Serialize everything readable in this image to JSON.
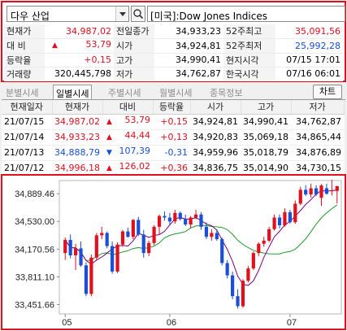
{
  "search": {
    "market_select": "다우 산업",
    "index_name": "[미국]:Dow Jones Indices"
  },
  "quote": {
    "rows": [
      {
        "l1": "현재가",
        "v1": "34,987,02",
        "l2": "전일종가",
        "v2": "34,933,23",
        "l3": "52주최고",
        "v3": "35,091,56"
      },
      {
        "l1": "대  비",
        "v1": "53,79",
        "l2": "시가",
        "v2": "34,924,81",
        "l3": "52주최저",
        "v3": "25,992,28"
      },
      {
        "l1": "등락율",
        "v1": "+0,15",
        "l2": "고가",
        "v2": "34,990,41",
        "l3": "현지시각",
        "v3": "07/15 17:01"
      },
      {
        "l1": "거래량",
        "v1": "320,445,798",
        "l2": "저가",
        "v2": "34,762,87",
        "l3": "한국시각",
        "v3": "07/16 06:01"
      }
    ],
    "change_arrow": "▲",
    "colors": {
      "up": "#e0101e",
      "down": "#1a4fd6"
    }
  },
  "tabs": [
    "분별시세",
    "일별시세",
    "주별시세",
    "월별시세",
    "종목정보"
  ],
  "selected_tab": "일별시세",
  "chart_button": "차트",
  "daily": {
    "headers": [
      "현재일자",
      "현재가",
      "대비",
      "등락율",
      "시가",
      "고가",
      "저가"
    ],
    "rows": [
      {
        "date": "21/07/15",
        "close": "34,987,02",
        "arrow": "▲",
        "change": "53,79",
        "rate": "+0,15",
        "open": "34,924,81",
        "high": "34,990,41",
        "low": "34,762,87",
        "dir": "up"
      },
      {
        "date": "21/07/14",
        "close": "34,933,23",
        "arrow": "▲",
        "change": "44,44",
        "rate": "+0,13",
        "open": "34,920,83",
        "high": "35,069,18",
        "low": "34,865,44",
        "dir": "up"
      },
      {
        "date": "21/07/13",
        "close": "34,888,79",
        "arrow": "▼",
        "change": "107,39",
        "rate": "-0,31",
        "open": "34,959,96",
        "high": "35,018,79",
        "low": "34,876,89",
        "dir": "down"
      },
      {
        "date": "21/07/12",
        "close": "34,996,18",
        "arrow": "▲",
        "change": "126,02",
        "rate": "+0,36",
        "open": "34,836,75",
        "high": "35,014,90",
        "low": "34,730,15",
        "dir": "up"
      }
    ]
  },
  "chart_data": {
    "type": "candlestick",
    "y_ticks": [
      "34,889.46",
      "34,530.00",
      "34,170.56",
      "33,811.10",
      "33,451.66"
    ],
    "y_tick_values": [
      34889.46,
      34530.0,
      34170.56,
      33811.1,
      33451.66
    ],
    "ylim": [
      33330,
      35060
    ],
    "x_ticks": [
      "05",
      "06",
      "07"
    ],
    "x_tick_index": [
      0,
      20,
      43
    ],
    "series": [
      {
        "name": "",
        "color": "#800080",
        "kind": "ma_short"
      },
      {
        "name": "",
        "color": "#1e9a2a",
        "kind": "ma_long"
      }
    ],
    "candles": [
      [
        34120,
        34320,
        34030,
        34290
      ],
      [
        34290,
        34360,
        34050,
        34090
      ],
      [
        34090,
        34240,
        33900,
        34180
      ],
      [
        34180,
        34270,
        33940,
        33960
      ],
      [
        33960,
        34000,
        33560,
        33590
      ],
      [
        33590,
        34100,
        33560,
        34060
      ],
      [
        34060,
        34380,
        34020,
        34350
      ],
      [
        34350,
        34460,
        34300,
        34380
      ],
      [
        34380,
        34400,
        34180,
        34210
      ],
      [
        34210,
        34270,
        33850,
        33880
      ],
      [
        33880,
        34260,
        33860,
        34230
      ],
      [
        34230,
        34420,
        34200,
        34400
      ],
      [
        34400,
        34450,
        34320,
        34330
      ],
      [
        34330,
        34560,
        34300,
        34550
      ],
      [
        34550,
        34590,
        34340,
        34360
      ],
      [
        34360,
        34420,
        34060,
        34120
      ],
      [
        34120,
        34280,
        34080,
        34250
      ],
      [
        34250,
        34480,
        34220,
        34460
      ],
      [
        34460,
        34620,
        34360,
        34600
      ],
      [
        34600,
        34660,
        34540,
        34580
      ],
      [
        34580,
        34640,
        34490,
        34530
      ],
      [
        34530,
        34680,
        34500,
        34640
      ],
      [
        34640,
        34660,
        34540,
        34560
      ],
      [
        34560,
        34620,
        34470,
        34490
      ],
      [
        34490,
        34600,
        34440,
        34580
      ],
      [
        34580,
        34680,
        34560,
        34620
      ],
      [
        34620,
        34650,
        34420,
        34460
      ],
      [
        34460,
        34520,
        34300,
        34330
      ],
      [
        34330,
        34430,
        34280,
        34380
      ],
      [
        34380,
        34430,
        34280,
        34300
      ],
      [
        34300,
        34320,
        33960,
        33990
      ],
      [
        33990,
        34030,
        33790,
        33830
      ],
      [
        33830,
        33880,
        33520,
        33560
      ],
      [
        33560,
        33650,
        33400,
        33430
      ],
      [
        33430,
        33780,
        33410,
        33760
      ],
      [
        33760,
        33950,
        33740,
        33920
      ],
      [
        33920,
        34140,
        33900,
        34120
      ],
      [
        34120,
        34260,
        34080,
        34240
      ],
      [
        34240,
        34330,
        34200,
        34280
      ],
      [
        34280,
        34460,
        34260,
        34430
      ],
      [
        34430,
        34620,
        34410,
        34580
      ],
      [
        34580,
        34620,
        34440,
        34480
      ],
      [
        34480,
        34700,
        34460,
        34650
      ],
      [
        34650,
        34680,
        34500,
        34520
      ],
      [
        34520,
        34800,
        34500,
        34760
      ],
      [
        34760,
        34980,
        34740,
        34940
      ],
      [
        34940,
        35000,
        34860,
        34880
      ],
      [
        34880,
        35020,
        34840,
        34960
      ],
      [
        34960,
        35000,
        34860,
        34880
      ],
      [
        34836,
        35015,
        34730,
        34996
      ],
      [
        34960,
        35019,
        34877,
        34889
      ],
      [
        34921,
        35069,
        34865,
        34933
      ],
      [
        34925,
        34990,
        34763,
        34987
      ]
    ]
  }
}
